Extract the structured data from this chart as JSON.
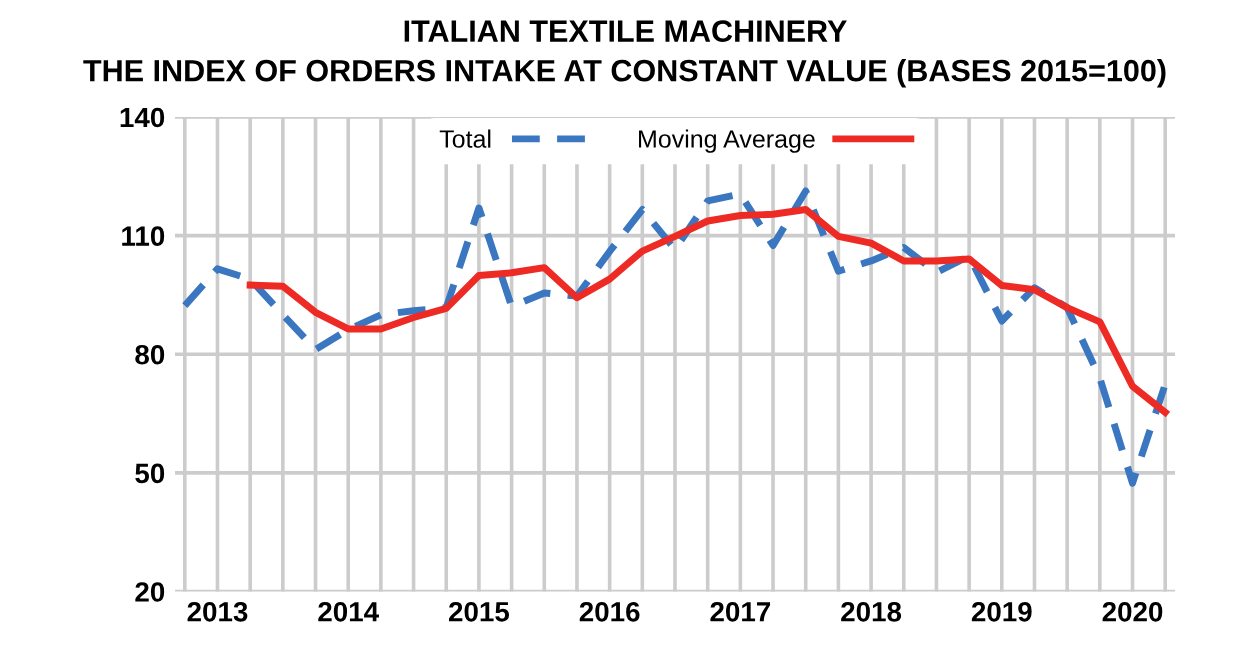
{
  "chart_data": {
    "type": "line",
    "title": "ITALIAN TEXTILE MACHINERY\nTHE INDEX OF ORDERS INTAKE AT CONSTANT VALUE (BASES 2015=100)",
    "categories": [
      null,
      "2013",
      null,
      null,
      null,
      "2014",
      null,
      null,
      null,
      "2015",
      null,
      null,
      null,
      "2016",
      null,
      null,
      null,
      "2017",
      null,
      null,
      null,
      "2018",
      null,
      null,
      null,
      "2019",
      null,
      null,
      null,
      "2020",
      null
    ],
    "series": [
      {
        "name": "Total",
        "color": "#3a77c0",
        "line_style": "dashed",
        "values": [
          92.3,
          101.6,
          99,
          90,
          81.2,
          86.2,
          90,
          91,
          91.8,
          117,
          92.1,
          95.5,
          94.7,
          106,
          116.6,
          106.5,
          118.8,
          120.5,
          107.5,
          121.3,
          101,
          103.6,
          107,
          100.7,
          104.8,
          88.4,
          96.8,
          91.8,
          74,
          47.4,
          72.4
        ]
      },
      {
        "name": "Moving Average",
        "color": "#ee2a24",
        "line_style": "solid",
        "values": [
          null,
          null,
          97.5,
          97.2,
          90.6,
          86.4,
          86.4,
          89.3,
          91.6,
          99.9,
          100.6,
          101.9,
          94.3,
          99,
          106.1,
          109.8,
          113.7,
          115.1,
          115.4,
          116.6,
          109.8,
          108.1,
          103.6,
          103.6,
          104.1,
          97.4,
          96.3,
          91.8,
          88.2,
          71.9,
          65.3
        ]
      }
    ],
    "ylim": [
      20,
      140
    ],
    "yticks": [
      20,
      50,
      80,
      110,
      140
    ],
    "grid": true,
    "legend": "top",
    "marker": "none"
  }
}
